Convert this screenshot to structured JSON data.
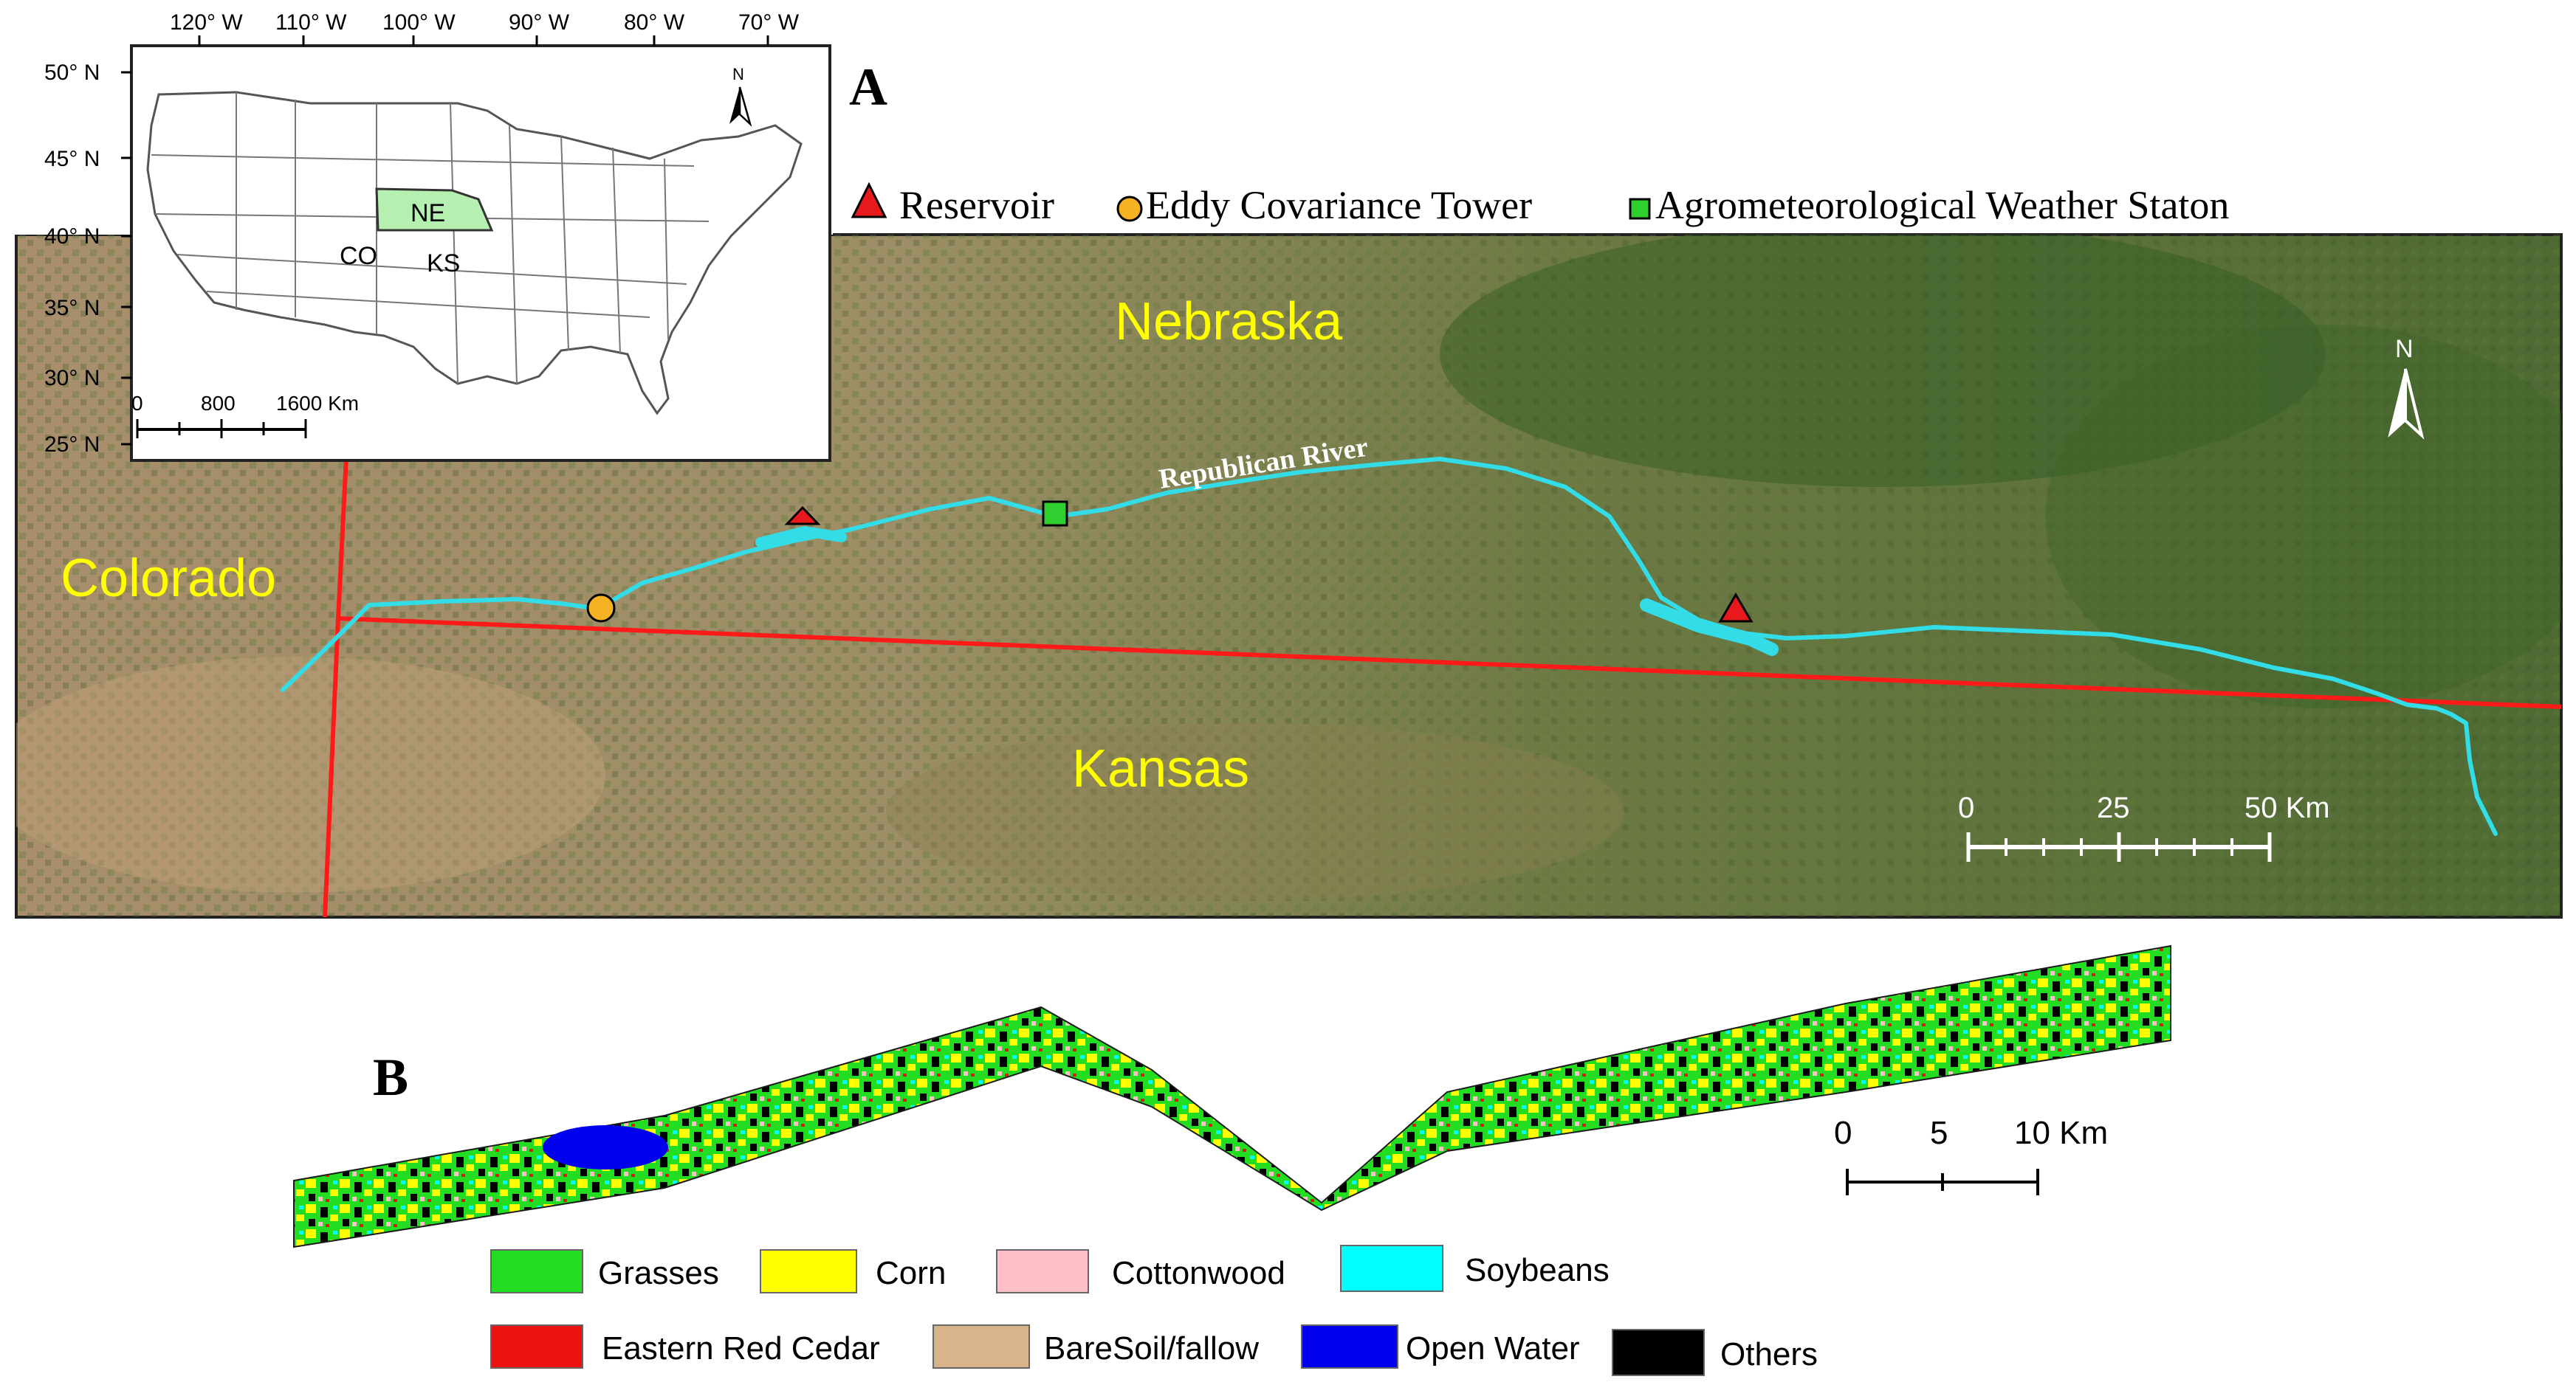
{
  "panel_a": {
    "label": "A",
    "legend": {
      "reservoir": "Reservoir",
      "tower": "Eddy Covariance Tower",
      "station": "Agrometeorological Weather Staton"
    },
    "states": {
      "nebraska": "Nebraska",
      "colorado": "Colorado",
      "kansas": "Kansas"
    },
    "river_label": "Republican River",
    "north": "N",
    "scale": {
      "ticks": [
        "0",
        "25",
        "50 Km"
      ]
    },
    "colors": {
      "river": "#33dde8",
      "border": "#ff1a1a",
      "state_label": "#ffff00",
      "reservoir": "#e8191c",
      "tower": "#f5b324",
      "station": "#2fcf30"
    }
  },
  "inset": {
    "lon_labels": [
      "120° W",
      "110° W",
      "100° W",
      "90° W",
      "80° W",
      "70° W"
    ],
    "lat_labels": [
      "50° N",
      "45° N",
      "40° N",
      "35° N",
      "30° N",
      "25° N"
    ],
    "state_labels": {
      "ne": "NE",
      "co": "CO",
      "ks": "KS"
    },
    "north": "N",
    "scale": {
      "ticks": [
        "0",
        "800",
        "1600 Km"
      ]
    },
    "highlight_color": "#b6f0b0"
  },
  "panel_b": {
    "label": "B",
    "scale": {
      "ticks": [
        "0",
        "5",
        "10  Km"
      ]
    },
    "legend": [
      {
        "label": "Grasses",
        "color": "#22dd22"
      },
      {
        "label": "Corn",
        "color": "#ffff00"
      },
      {
        "label": "Cottonwood",
        "color": "#ffc0c8"
      },
      {
        "label": "Soybeans",
        "color": "#00ffff"
      },
      {
        "label": "Eastern Red Cedar",
        "color": "#ee1111"
      },
      {
        "label": "BareSoil/fallow",
        "color": "#d9b48a"
      },
      {
        "label": "Open Water",
        "color": "#0000ee"
      },
      {
        "label": "Others",
        "color": "#000000"
      }
    ]
  }
}
